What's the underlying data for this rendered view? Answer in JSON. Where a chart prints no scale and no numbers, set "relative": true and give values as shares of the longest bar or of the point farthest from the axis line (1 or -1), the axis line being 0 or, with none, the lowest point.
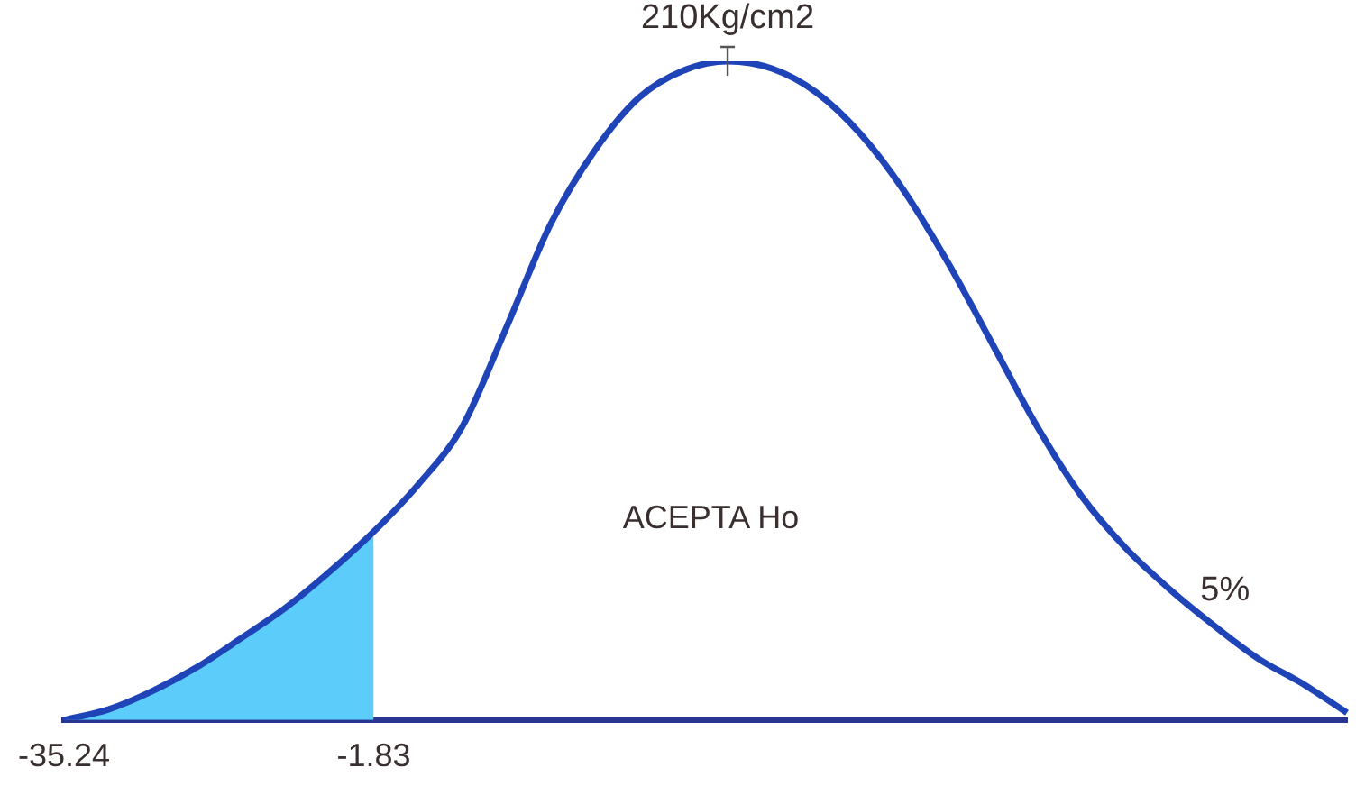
{
  "chart_data": {
    "type": "line",
    "relative": true,
    "grid": false,
    "legend": false,
    "categories": [
      "-35.24",
      null,
      null,
      null,
      null,
      null,
      null,
      "-1.83",
      null,
      null,
      null,
      null,
      null,
      null,
      null,
      null,
      null,
      null,
      null,
      null,
      null,
      null,
      null,
      null,
      null,
      null,
      null,
      null,
      null,
      null
    ],
    "annotations": [
      "210Kg/cm2",
      "ACEPTA Ho",
      "5%"
    ],
    "series": [
      {
        "type": "area",
        "color": "#5ccdfa",
        "values": [
          0,
          0.016,
          0.044,
          0.08,
          0.124,
          0.17,
          0.225,
          0.286,
          null,
          null,
          null,
          null,
          null,
          null,
          null,
          null,
          null,
          null,
          null,
          null,
          null,
          null,
          null,
          null,
          null,
          null,
          null,
          null,
          null,
          null
        ]
      },
      {
        "type": "line",
        "color": "#1f44b8",
        "values": [
          0,
          0.016,
          0.044,
          0.08,
          0.124,
          0.17,
          0.225,
          0.286,
          0.357,
          0.445,
          0.596,
          0.753,
          0.865,
          0.945,
          0.986,
          1,
          0.989,
          0.953,
          0.89,
          0.802,
          0.692,
          0.569,
          0.445,
          0.34,
          0.261,
          0.198,
          0.143,
          0.093,
          0.055,
          0.011
        ]
      }
    ]
  }
}
